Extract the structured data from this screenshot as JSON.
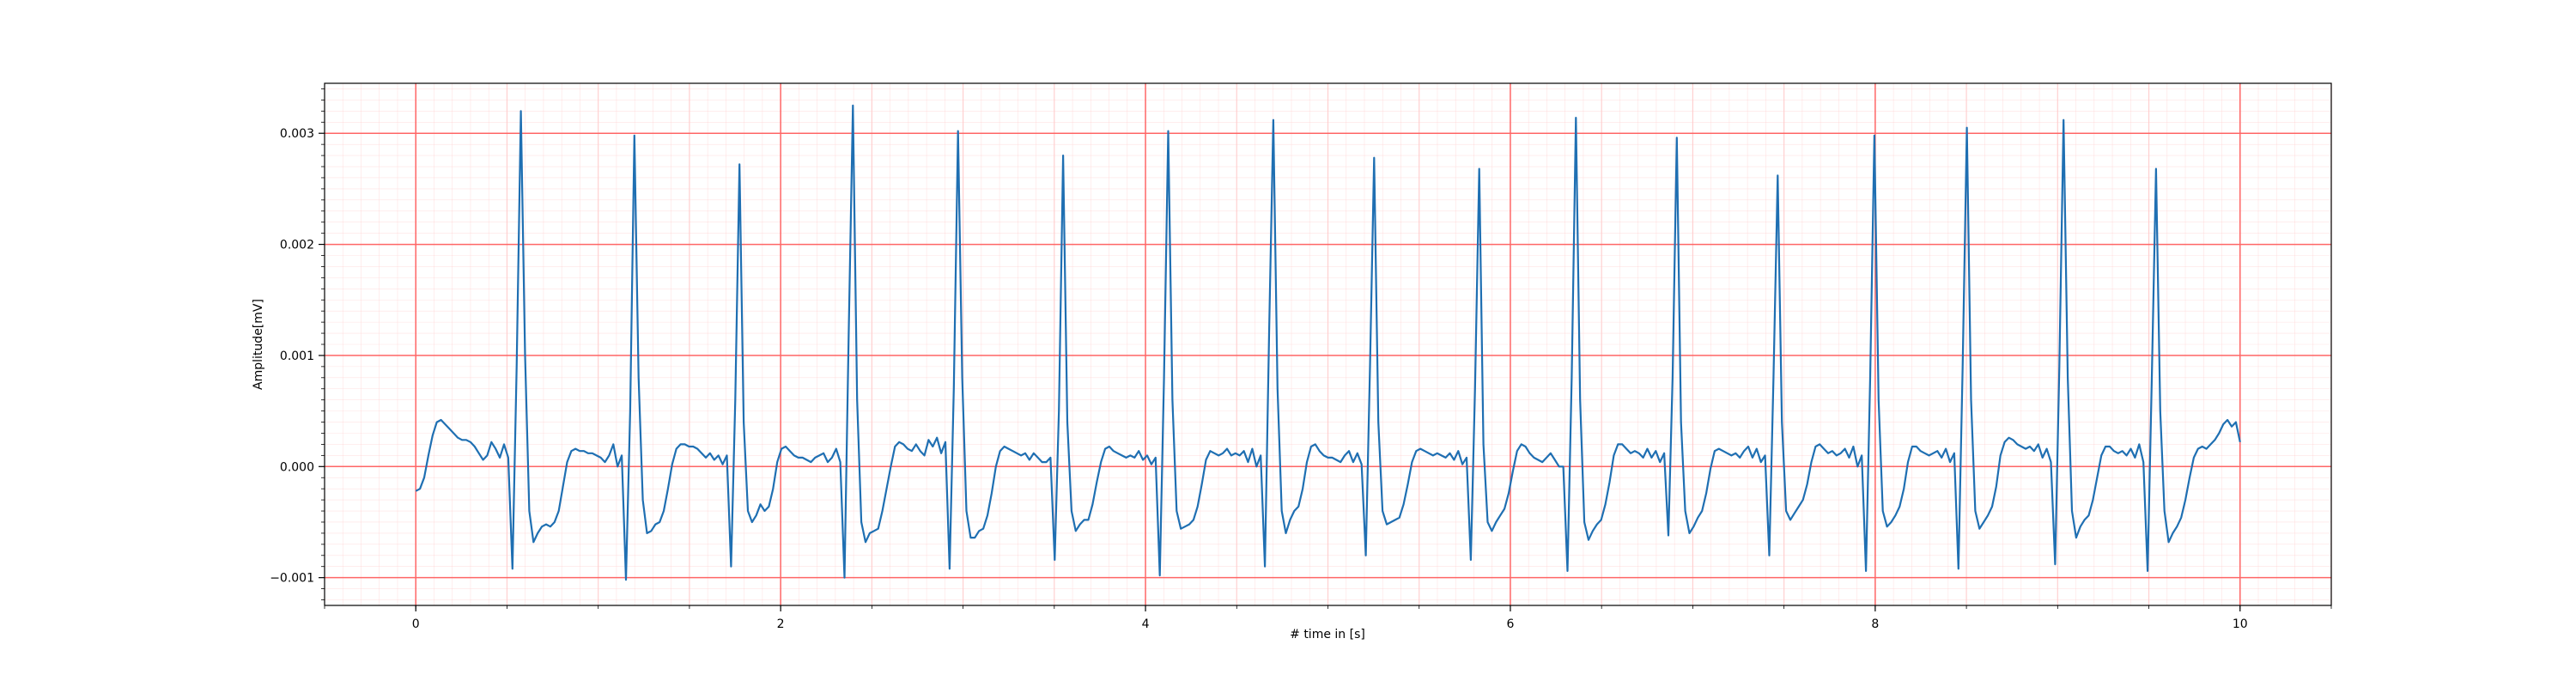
{
  "chart_data": {
    "type": "line",
    "title": "",
    "xlabel": "# time in [s]",
    "ylabel": "Amplitude[mV]",
    "xlim": [
      -0.5,
      10.5
    ],
    "ylim": [
      -0.00125,
      0.00345
    ],
    "x_ticks": [
      0,
      2,
      4,
      6,
      8,
      10
    ],
    "x_tick_labels": [
      "0",
      "2",
      "4",
      "6",
      "8",
      "10"
    ],
    "y_ticks": [
      -0.001,
      0.0,
      0.001,
      0.002,
      0.003
    ],
    "y_tick_labels": [
      "−0.001",
      "0.000",
      "0.001",
      "0.002",
      "0.003"
    ],
    "grid": {
      "major": true,
      "minor": true,
      "major_color": "#ff6666",
      "minor_color": "#ffcccc"
    },
    "line_color": "#1f6fb2",
    "series": [
      {
        "name": "",
        "sample_rate_hz": 100,
        "x_start": 0.0,
        "values": [
          -0.00022,
          -0.0002,
          -0.0001,
          0.0001,
          0.00028,
          0.0004,
          0.00042,
          0.00038,
          0.00034,
          0.0003,
          0.00026,
          0.00024,
          0.00024,
          0.00022,
          0.00018,
          0.00012,
          6e-05,
          0.0001,
          0.00022,
          0.00016,
          8e-05,
          0.0002,
          8e-05,
          -0.00092,
          0.0009,
          0.0032,
          0.001,
          -0.0004,
          -0.00068,
          -0.0006,
          -0.00054,
          -0.00052,
          -0.00054,
          -0.0005,
          -0.0004,
          -0.00018,
          4e-05,
          0.00014,
          0.00016,
          0.00014,
          0.00014,
          0.00012,
          0.00012,
          0.0001,
          8e-05,
          4e-05,
          0.0001,
          0.0002,
          0.0,
          0.0001,
          -0.00102,
          0.0005,
          0.00298,
          0.0008,
          -0.0003,
          -0.0006,
          -0.00058,
          -0.00052,
          -0.0005,
          -0.0004,
          -0.0002,
          2e-05,
          0.00016,
          0.0002,
          0.0002,
          0.00018,
          0.00018,
          0.00016,
          0.00012,
          8e-05,
          0.00012,
          6e-05,
          0.0001,
          2e-05,
          0.0001,
          -0.0009,
          0.0006,
          0.00272,
          0.0004,
          -0.0004,
          -0.0005,
          -0.00044,
          -0.00034,
          -0.0004,
          -0.00036,
          -0.0002,
          4e-05,
          0.00016,
          0.00018,
          0.00014,
          0.0001,
          8e-05,
          8e-05,
          6e-05,
          4e-05,
          8e-05,
          0.0001,
          0.00012,
          4e-05,
          8e-05,
          0.00016,
          4e-05,
          -0.001,
          0.0012,
          0.00325,
          0.0006,
          -0.0005,
          -0.00068,
          -0.0006,
          -0.00058,
          -0.00056,
          -0.0004,
          -0.0002,
          0.0,
          0.00018,
          0.00022,
          0.0002,
          0.00016,
          0.00014,
          0.0002,
          0.00014,
          0.0001,
          0.00024,
          0.00018,
          0.00026,
          0.00012,
          0.00022,
          -0.00092,
          0.0007,
          0.00302,
          0.0008,
          -0.0004,
          -0.00064,
          -0.00064,
          -0.00058,
          -0.00056,
          -0.00044,
          -0.00024,
          0.0,
          0.00014,
          0.00018,
          0.00016,
          0.00014,
          0.00012,
          0.0001,
          0.00012,
          6e-05,
          0.00012,
          8e-05,
          4e-05,
          4e-05,
          8e-05,
          -0.00084,
          0.0005,
          0.0028,
          0.0004,
          -0.0004,
          -0.00058,
          -0.00052,
          -0.00048,
          -0.00048,
          -0.00034,
          -0.00014,
          4e-05,
          0.00016,
          0.00018,
          0.00014,
          0.00012,
          0.0001,
          8e-05,
          0.0001,
          8e-05,
          0.00014,
          6e-05,
          0.0001,
          2e-05,
          8e-05,
          -0.00098,
          0.0008,
          0.00302,
          0.0006,
          -0.0004,
          -0.00056,
          -0.00054,
          -0.00052,
          -0.00048,
          -0.00036,
          -0.00016,
          6e-05,
          0.00014,
          0.00012,
          0.0001,
          0.00012,
          0.00016,
          0.0001,
          0.00012,
          0.0001,
          0.00014,
          4e-05,
          0.00016,
          0.0,
          0.0001,
          -0.0009,
          0.0012,
          0.00312,
          0.0007,
          -0.0004,
          -0.0006,
          -0.00048,
          -0.0004,
          -0.00036,
          -0.0002,
          4e-05,
          0.00018,
          0.0002,
          0.00014,
          0.0001,
          8e-05,
          8e-05,
          6e-05,
          4e-05,
          0.0001,
          0.00014,
          4e-05,
          0.00012,
          2e-05,
          -0.0008,
          0.0009,
          0.00278,
          0.0004,
          -0.0004,
          -0.00052,
          -0.0005,
          -0.00048,
          -0.00046,
          -0.00034,
          -0.00016,
          4e-05,
          0.00014,
          0.00016,
          0.00014,
          0.00012,
          0.0001,
          0.00012,
          0.0001,
          8e-05,
          0.00012,
          6e-05,
          0.00014,
          2e-05,
          8e-05,
          -0.00084,
          0.0007,
          0.00268,
          0.0002,
          -0.0005,
          -0.00058,
          -0.0005,
          -0.00044,
          -0.00038,
          -0.00024,
          -4e-05,
          0.00014,
          0.0002,
          0.00018,
          0.00012,
          8e-05,
          6e-05,
          4e-05,
          8e-05,
          0.00012,
          6e-05,
          0.0,
          0.0,
          -0.00094,
          0.0008,
          0.00314,
          0.0006,
          -0.0005,
          -0.00066,
          -0.00058,
          -0.00052,
          -0.00048,
          -0.00034,
          -0.00014,
          0.0001,
          0.0002,
          0.0002,
          0.00016,
          0.00012,
          0.00014,
          0.00012,
          8e-05,
          0.00016,
          8e-05,
          0.00014,
          4e-05,
          0.00012,
          -0.00062,
          0.0008,
          0.00296,
          0.0004,
          -0.0004,
          -0.0006,
          -0.00054,
          -0.00046,
          -0.0004,
          -0.00024,
          -2e-05,
          0.00014,
          0.00016,
          0.00014,
          0.00012,
          0.0001,
          0.00012,
          8e-05,
          0.00014,
          0.00018,
          8e-05,
          0.00016,
          4e-05,
          0.0001,
          -0.0008,
          0.0008,
          0.00262,
          0.0004,
          -0.0004,
          -0.00048,
          -0.00042,
          -0.00036,
          -0.0003,
          -0.00016,
          4e-05,
          0.00018,
          0.0002,
          0.00016,
          0.00012,
          0.00014,
          0.0001,
          0.00012,
          0.00016,
          8e-05,
          0.00018,
          0.0,
          0.0001,
          -0.00094,
          0.0008,
          0.00298,
          0.0006,
          -0.0004,
          -0.00054,
          -0.0005,
          -0.00044,
          -0.00036,
          -0.0002,
          4e-05,
          0.00018,
          0.00018,
          0.00014,
          0.00012,
          0.0001,
          0.00012,
          0.00014,
          8e-05,
          0.00016,
          4e-05,
          0.00012,
          -0.00092,
          0.0009,
          0.00305,
          0.0006,
          -0.0004,
          -0.00056,
          -0.0005,
          -0.00044,
          -0.00036,
          -0.00018,
          0.0001,
          0.00022,
          0.00026,
          0.00024,
          0.0002,
          0.00018,
          0.00016,
          0.00018,
          0.00014,
          0.0002,
          8e-05,
          0.00016,
          4e-05,
          -0.00088,
          0.0009,
          0.00312,
          0.0008,
          -0.0004,
          -0.00064,
          -0.00054,
          -0.00048,
          -0.00044,
          -0.0003,
          -0.0001,
          0.0001,
          0.00018,
          0.00018,
          0.00014,
          0.00012,
          0.00014,
          0.0001,
          0.00016,
          8e-05,
          0.0002,
          4e-05,
          -0.00094,
          0.0008,
          0.00268,
          0.0005,
          -0.0004,
          -0.00068,
          -0.0006,
          -0.00054,
          -0.00046,
          -0.0003,
          -0.0001,
          8e-05,
          0.00016,
          0.00018,
          0.00016,
          0.0002,
          0.00024,
          0.0003,
          0.00038,
          0.00042,
          0.00036,
          0.0004,
          0.00022
        ]
      }
    ]
  }
}
